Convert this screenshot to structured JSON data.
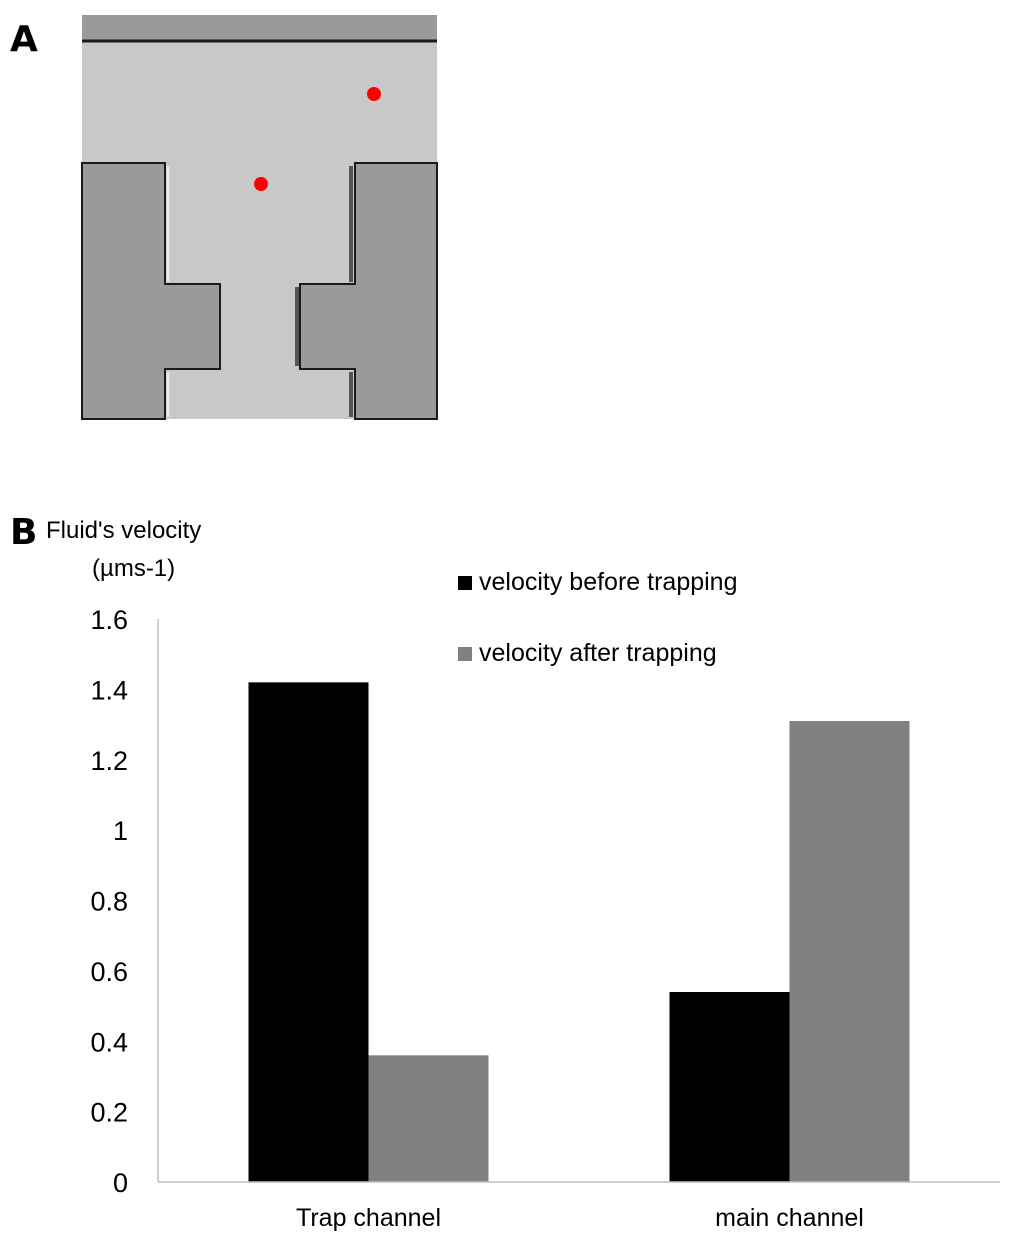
{
  "panels": {
    "a_label": "A",
    "b_label": "B"
  },
  "schematic": {
    "wall_color": "#9a9a9a",
    "channel_color": "#c8c8c8",
    "edge_color": "#1a1a1a",
    "particle_color": "#ff0000",
    "particles": 2
  },
  "chart_data": {
    "type": "bar",
    "ylabel_line1": "Fluid's velocity",
    "ylabel_line2": "(µms-1)",
    "categories": [
      "Trap channel",
      "main channel"
    ],
    "series": [
      {
        "name": "velocity before trapping",
        "color": "#000000",
        "values": [
          1.42,
          0.54
        ]
      },
      {
        "name": "velocity after trapping",
        "color": "#808080",
        "values": [
          0.36,
          1.31
        ]
      }
    ],
    "ylim": [
      0,
      1.6
    ],
    "yticks": [
      "0",
      "0.2",
      "0.4",
      "0.6",
      "0.8",
      "1",
      "1.2",
      "1.4",
      "1.6"
    ],
    "grid": false,
    "legend_position": "top-right"
  }
}
